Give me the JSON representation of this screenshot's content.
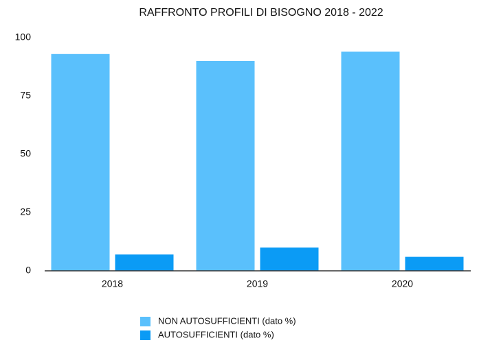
{
  "chart_data": {
    "type": "bar",
    "title": "RAFFRONTO PROFILI DI BISOGNO 2018 - 2022",
    "categories": [
      "2018",
      "2019",
      "2020"
    ],
    "series": [
      {
        "name": "NON AUTOSUFFICIENTI (dato %)",
        "color": "#5ac0fc",
        "values": [
          93,
          90,
          94
        ]
      },
      {
        "name": "AUTOSUFFICIENTI (dato %)",
        "color": "#0b9bf5",
        "values": [
          7,
          10,
          6
        ]
      }
    ],
    "ylim": [
      0,
      100
    ],
    "yticks": [
      0,
      25,
      50,
      75,
      100
    ],
    "grid": false,
    "legend": "bottom"
  }
}
